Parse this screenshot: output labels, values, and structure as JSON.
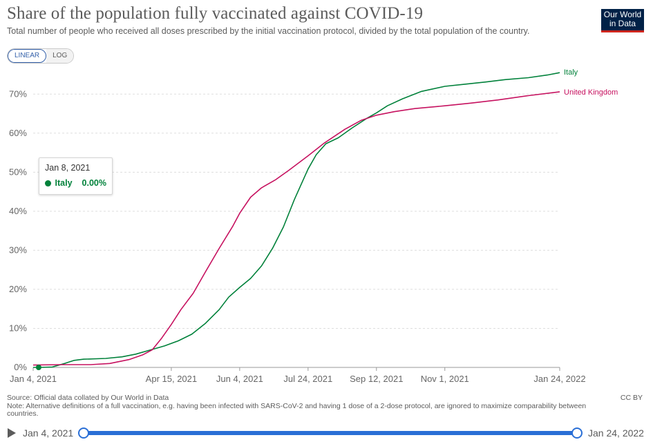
{
  "header": {
    "title": "Share of the population fully vaccinated against COVID-19",
    "subtitle": "Total number of people who received all doses prescribed by the initial vaccination protocol, divided by the total population of the country.",
    "logo_line1": "Our World",
    "logo_line2": "in Data"
  },
  "scale_toggle": {
    "linear_label": "LINEAR",
    "log_label": "LOG",
    "selected": "LINEAR"
  },
  "tooltip": {
    "date": "Jan 8, 2021",
    "series": "Italy",
    "value": "0.00%",
    "color": "#00813a"
  },
  "colors": {
    "italy": "#00813a",
    "uk": "#c6115f",
    "grid": "#dddddd",
    "accent": "#2a6fd6"
  },
  "chart_data": {
    "type": "line",
    "title": "Share of the population fully vaccinated against COVID-19",
    "xlabel": "",
    "ylabel": "",
    "x_type": "date",
    "x_range": [
      "2021-01-04",
      "2022-01-24"
    ],
    "xticks": [
      {
        "date": "2021-01-04",
        "label": "Jan 4, 2021"
      },
      {
        "date": "2021-04-15",
        "label": "Apr 15, 2021"
      },
      {
        "date": "2021-06-04",
        "label": "Jun 4, 2021"
      },
      {
        "date": "2021-07-24",
        "label": "Jul 24, 2021"
      },
      {
        "date": "2021-09-12",
        "label": "Sep 12, 2021"
      },
      {
        "date": "2021-11-01",
        "label": "Nov 1, 2021"
      },
      {
        "date": "2022-01-24",
        "label": "Jan 24, 2022"
      }
    ],
    "ylim": [
      0,
      75
    ],
    "yticks": [
      0,
      10,
      20,
      30,
      40,
      50,
      60,
      70
    ],
    "ytick_labels": [
      "0%",
      "10%",
      "20%",
      "30%",
      "40%",
      "50%",
      "60%",
      "70%"
    ],
    "grid": true,
    "legend": "line-end labels",
    "highlight_point": {
      "series": "Italy",
      "date": "2021-01-08",
      "value": 0
    },
    "series": [
      {
        "name": "Italy",
        "color": "#00813a",
        "points": [
          [
            "2021-01-04",
            0
          ],
          [
            "2021-01-08",
            0
          ],
          [
            "2021-01-18",
            0.1
          ],
          [
            "2021-01-27",
            1.0
          ],
          [
            "2021-02-03",
            1.8
          ],
          [
            "2021-02-10",
            2.1
          ],
          [
            "2021-02-26",
            2.3
          ],
          [
            "2021-03-10",
            2.7
          ],
          [
            "2021-03-20",
            3.4
          ],
          [
            "2021-04-01",
            4.6
          ],
          [
            "2021-04-10",
            5.5
          ],
          [
            "2021-04-20",
            6.8
          ],
          [
            "2021-04-30",
            8.5
          ],
          [
            "2021-05-10",
            11.3
          ],
          [
            "2021-05-20",
            14.8
          ],
          [
            "2021-05-27",
            18.0
          ],
          [
            "2021-06-04",
            20.5
          ],
          [
            "2021-06-12",
            22.8
          ],
          [
            "2021-06-20",
            26.0
          ],
          [
            "2021-06-28",
            30.5
          ],
          [
            "2021-07-06",
            36.0
          ],
          [
            "2021-07-14",
            43.0
          ],
          [
            "2021-07-24",
            50.8
          ],
          [
            "2021-07-30",
            54.5
          ],
          [
            "2021-08-06",
            57.3
          ],
          [
            "2021-08-15",
            58.8
          ],
          [
            "2021-08-25",
            61.3
          ],
          [
            "2021-09-05",
            63.8
          ],
          [
            "2021-09-12",
            65.2
          ],
          [
            "2021-09-20",
            67.0
          ],
          [
            "2021-10-01",
            68.8
          ],
          [
            "2021-10-15",
            70.7
          ],
          [
            "2021-11-01",
            72.0
          ],
          [
            "2021-11-15",
            72.5
          ],
          [
            "2021-12-01",
            73.1
          ],
          [
            "2021-12-15",
            73.7
          ],
          [
            "2022-01-01",
            74.2
          ],
          [
            "2022-01-15",
            74.9
          ],
          [
            "2022-01-24",
            75.5
          ]
        ]
      },
      {
        "name": "United Kingdom",
        "color": "#c6115f",
        "points": [
          [
            "2021-01-04",
            0.6
          ],
          [
            "2021-01-25",
            0.7
          ],
          [
            "2021-02-15",
            0.7
          ],
          [
            "2021-03-01",
            1.0
          ],
          [
            "2021-03-15",
            2.0
          ],
          [
            "2021-03-25",
            3.2
          ],
          [
            "2021-04-01",
            4.5
          ],
          [
            "2021-04-08",
            7.5
          ],
          [
            "2021-04-15",
            11.0
          ],
          [
            "2021-04-22",
            14.8
          ],
          [
            "2021-05-01",
            19.0
          ],
          [
            "2021-05-10",
            24.5
          ],
          [
            "2021-05-20",
            30.5
          ],
          [
            "2021-05-30",
            36.2
          ],
          [
            "2021-06-04",
            39.5
          ],
          [
            "2021-06-12",
            43.6
          ],
          [
            "2021-06-20",
            46.0
          ],
          [
            "2021-06-30",
            48.0
          ],
          [
            "2021-07-10",
            50.5
          ],
          [
            "2021-07-24",
            54.2
          ],
          [
            "2021-08-05",
            57.5
          ],
          [
            "2021-08-20",
            61.0
          ],
          [
            "2021-09-01",
            63.3
          ],
          [
            "2021-09-12",
            64.6
          ],
          [
            "2021-09-25",
            65.5
          ],
          [
            "2021-10-10",
            66.3
          ],
          [
            "2021-11-01",
            67.0
          ],
          [
            "2021-11-20",
            67.7
          ],
          [
            "2021-12-10",
            68.5
          ],
          [
            "2022-01-01",
            69.6
          ],
          [
            "2022-01-24",
            70.6
          ]
        ]
      }
    ]
  },
  "footer": {
    "source": "Source: Official data collated by Our World in Data",
    "note": "Note: Alternative definitions of a full vaccination, e.g. having been infected with SARS-CoV-2 and having 1 dose of a 2-dose protocol, are ignored to maximize comparability between countries.",
    "license": "CC BY"
  },
  "timeline": {
    "start_label": "Jan 4, 2021",
    "end_label": "Jan 24, 2022"
  }
}
